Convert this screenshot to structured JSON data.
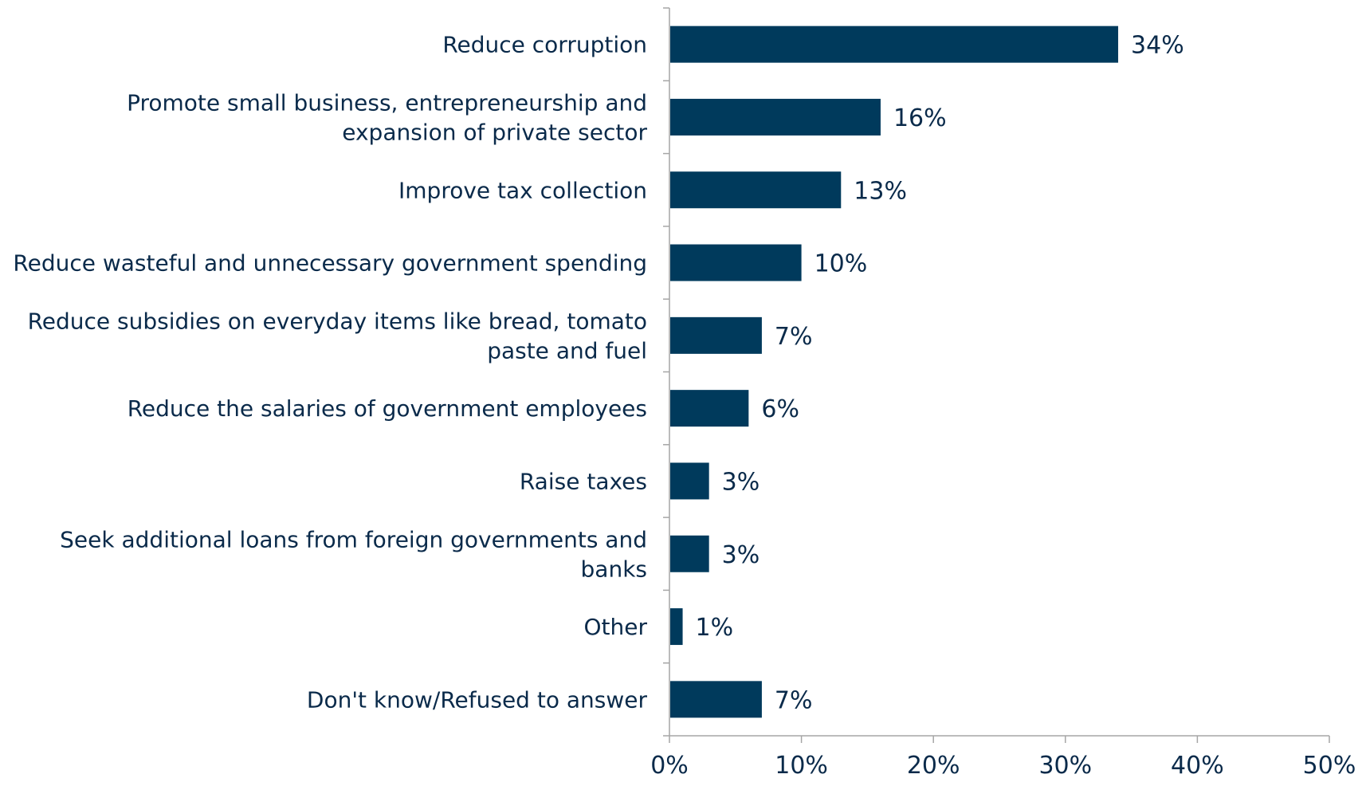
{
  "chart_data": {
    "type": "bar",
    "orientation": "horizontal",
    "categories": [
      [
        "Reduce corruption"
      ],
      [
        "Promote small business, entrepreneurship and",
        "expansion of private sector"
      ],
      [
        "Improve tax collection"
      ],
      [
        "Reduce wasteful and unnecessary government spending"
      ],
      [
        "Reduce subsidies on everyday items like bread, tomato",
        "paste and fuel"
      ],
      [
        "Reduce the salaries of government employees"
      ],
      [
        "Raise taxes"
      ],
      [
        "Seek additional loans from foreign governments and",
        "banks"
      ],
      [
        "Other"
      ],
      [
        "Don't know/Refused to answer"
      ]
    ],
    "values": [
      34,
      16,
      13,
      10,
      7,
      6,
      3,
      3,
      1,
      7
    ],
    "value_labels": [
      "34%",
      "16%",
      "13%",
      "10%",
      "7%",
      "6%",
      "3%",
      "3%",
      "1%",
      "7%"
    ],
    "xlim": [
      0,
      50
    ],
    "xticks": [
      0,
      10,
      20,
      30,
      40,
      50
    ],
    "xtick_labels": [
      "0%",
      "10%",
      "20%",
      "30%",
      "40%",
      "50%"
    ],
    "grid": false,
    "legend": "none",
    "bar_color": "#003a5c",
    "text_color": "#0a2a4a",
    "axis_color": "#a6a6a6"
  }
}
